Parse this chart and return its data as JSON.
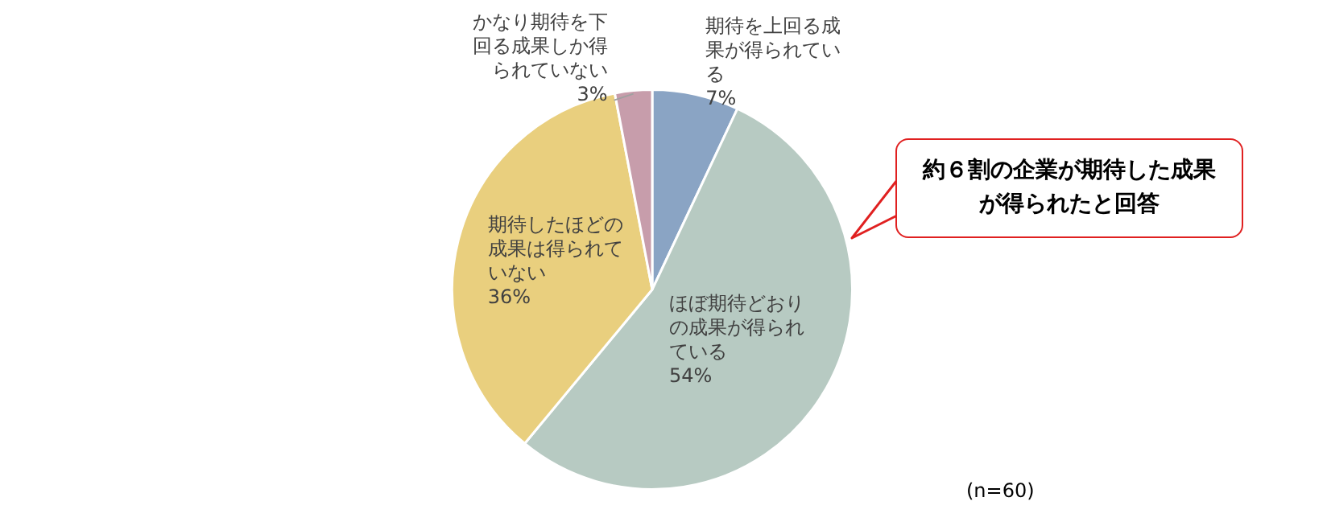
{
  "chart_data": {
    "type": "pie",
    "categories": [
      "期待を上回る成果が得られている",
      "ほぼ期待どおりの成果が得られている",
      "期待したほどの成果は得られていない",
      "かなり期待を下回る成果しか得られていない"
    ],
    "values": [
      7,
      54,
      36,
      3
    ],
    "value_labels": [
      "7%",
      "54%",
      "36%",
      "3%"
    ],
    "colors": [
      "#8aa4c4",
      "#b7cac2",
      "#e9cf7e",
      "#c79dab"
    ],
    "legend": false,
    "annotations": [
      "約６割の企業が期待した成果が得られたと回答",
      "(n=60)"
    ]
  }
}
